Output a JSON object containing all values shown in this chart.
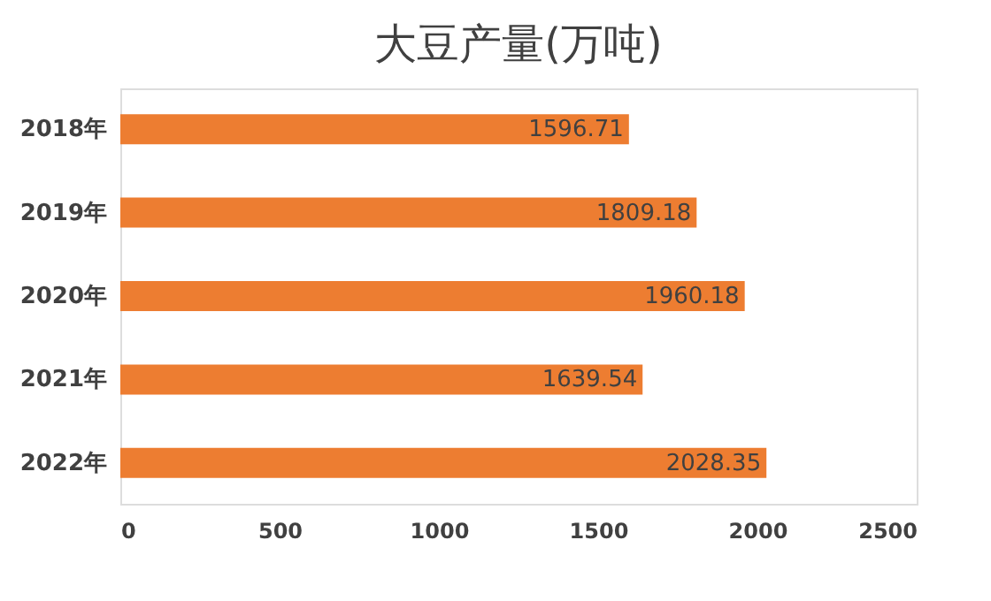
{
  "chart_data": {
    "type": "bar",
    "title": "大豆产量(万吨)",
    "orientation": "horizontal",
    "categories": [
      "2018年",
      "2019年",
      "2020年",
      "2021年",
      "2022年"
    ],
    "values": [
      1596.71,
      1809.18,
      1960.18,
      1639.54,
      2028.35
    ],
    "color": "#ed7d31",
    "xlim": [
      0,
      2500
    ],
    "xticks": [
      0,
      500,
      1000,
      1500,
      2000,
      2500
    ],
    "grid": false,
    "data_labels": true
  }
}
